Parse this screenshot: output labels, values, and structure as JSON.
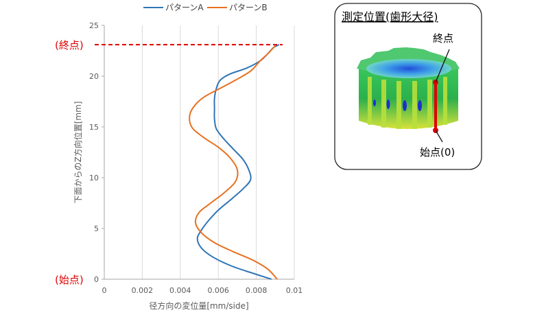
{
  "chart_data": {
    "type": "line",
    "title": "",
    "xlabel": "径方向の変位量[mm/side]",
    "ylabel": "下面からのZ方向位置[mm]",
    "xlim": [
      0,
      0.01
    ],
    "ylim": [
      0,
      25
    ],
    "x_ticks": [
      "0",
      "0.002",
      "0.004",
      "0.006",
      "0.008",
      "0.01"
    ],
    "y_ticks": [
      "0",
      "5",
      "10",
      "15",
      "20",
      "25"
    ],
    "grid": "vertical",
    "legend_position": "top",
    "colors": {
      "A": "#2e75b6",
      "B": "#e8701f",
      "marker": "#e00000"
    },
    "series": [
      {
        "name": "パターンA",
        "color": "#2e75b6",
        "points": [
          [
            0.0088,
            0
          ],
          [
            0.0078,
            0.6
          ],
          [
            0.0067,
            1.3
          ],
          [
            0.0057,
            2.2
          ],
          [
            0.0051,
            3.1
          ],
          [
            0.0049,
            4.0
          ],
          [
            0.0051,
            4.8
          ],
          [
            0.0055,
            5.8
          ],
          [
            0.006,
            6.8
          ],
          [
            0.0067,
            7.9
          ],
          [
            0.0073,
            8.9
          ],
          [
            0.0077,
            9.8
          ],
          [
            0.0076,
            10.8
          ],
          [
            0.0073,
            11.8
          ],
          [
            0.0068,
            12.8
          ],
          [
            0.0063,
            13.8
          ],
          [
            0.0059,
            14.8
          ],
          [
            0.0058,
            15.8
          ],
          [
            0.0058,
            16.8
          ],
          [
            0.0058,
            17.8
          ],
          [
            0.0059,
            18.8
          ],
          [
            0.0061,
            19.6
          ],
          [
            0.0066,
            20.2
          ],
          [
            0.0075,
            20.8
          ],
          [
            0.0082,
            21.5
          ],
          [
            0.0086,
            22.2
          ],
          [
            0.0089,
            22.8
          ],
          [
            0.0092,
            23.1
          ]
        ]
      },
      {
        "name": "パターンB",
        "color": "#e8701f",
        "points": [
          [
            0.0091,
            0
          ],
          [
            0.0086,
            1.0
          ],
          [
            0.0078,
            1.9
          ],
          [
            0.0068,
            2.7
          ],
          [
            0.0058,
            3.6
          ],
          [
            0.0051,
            4.6
          ],
          [
            0.0048,
            5.6
          ],
          [
            0.005,
            6.6
          ],
          [
            0.0056,
            7.5
          ],
          [
            0.0063,
            8.5
          ],
          [
            0.0069,
            9.6
          ],
          [
            0.007,
            10.8
          ],
          [
            0.0066,
            12.0
          ],
          [
            0.006,
            13.0
          ],
          [
            0.0052,
            14.0
          ],
          [
            0.0046,
            15.0
          ],
          [
            0.0045,
            16.2
          ],
          [
            0.0048,
            17.2
          ],
          [
            0.0053,
            18.0
          ],
          [
            0.0061,
            18.8
          ],
          [
            0.0069,
            19.6
          ],
          [
            0.0077,
            20.5
          ],
          [
            0.0082,
            21.5
          ],
          [
            0.0086,
            22.2
          ],
          [
            0.009,
            23.0
          ]
        ]
      }
    ],
    "reference_line": {
      "y": 23.1,
      "color": "#e00000",
      "style": "dashed"
    },
    "annotations": [
      {
        "text": "(終点)",
        "y": 23.1
      },
      {
        "text": "(始点)",
        "y": 0
      }
    ]
  },
  "inset": {
    "title": "測定位置(歯形大径)",
    "end_label": "終点",
    "start_label": "始点(0)"
  }
}
